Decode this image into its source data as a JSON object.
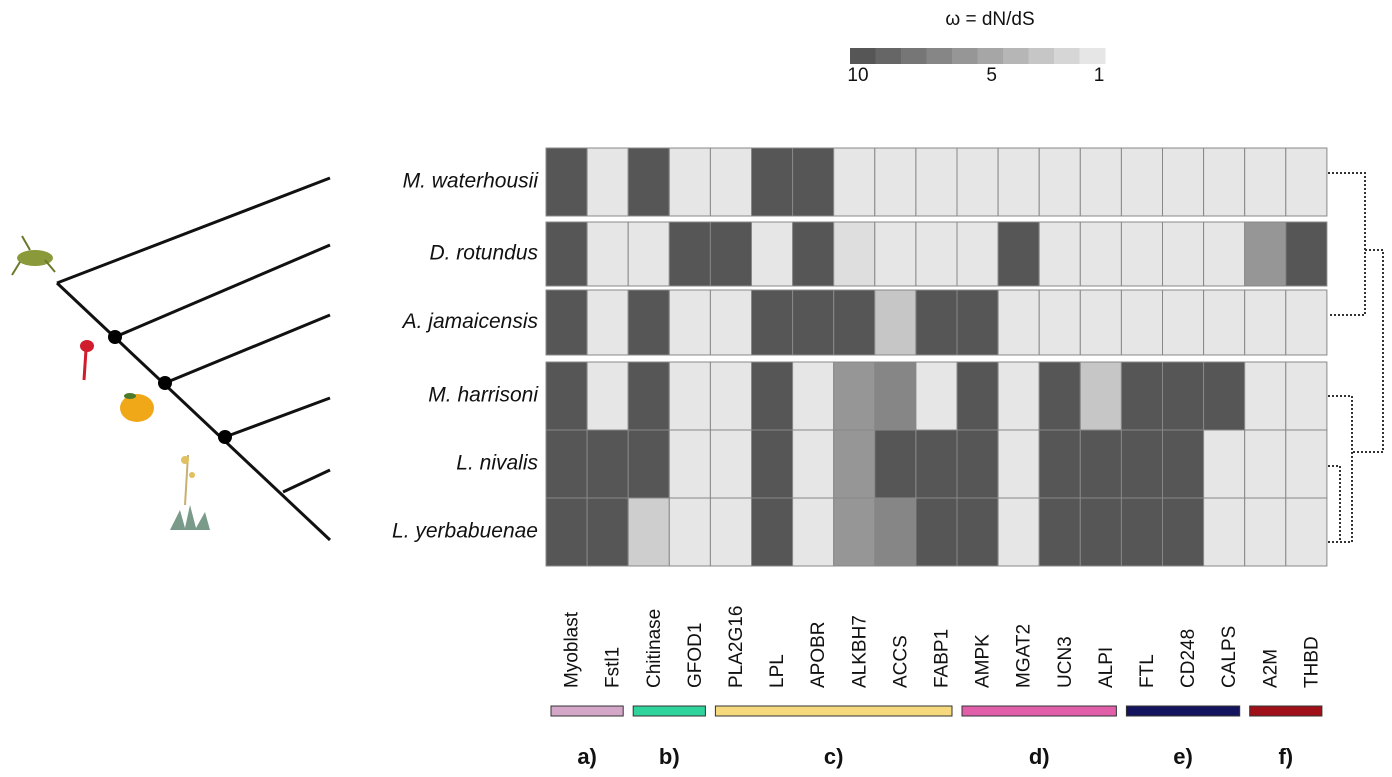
{
  "chart_data": {
    "type": "heatmap",
    "colorbar": {
      "label": "ω = dN/dS",
      "lim": [
        10,
        1
      ],
      "ticks": [
        10,
        5,
        1
      ]
    },
    "color_range": [
      "#565656",
      "#e6e6e6"
    ],
    "rows": [
      "M. waterhousii",
      "D. rotundus",
      "A. jamaicensis",
      "M. harrisoni",
      "L. nivalis",
      "L. yerbabuenae"
    ],
    "columns": [
      "Myoblast",
      "Fstl1",
      "Chitinase",
      "GFOD1",
      "PLA2G16",
      "LPL",
      "APOBR",
      "ALKBH7",
      "ACCS",
      "FABP1",
      "AMPK",
      "MGAT2",
      "UCN3",
      "ALPI",
      "FTL",
      "CD248",
      "CALPS",
      "A2M",
      "THBD"
    ],
    "values": [
      [
        10,
        1,
        10,
        1,
        1,
        10,
        10,
        1,
        1,
        1,
        1,
        1,
        1,
        1,
        1,
        1,
        1,
        1,
        1
      ],
      [
        10,
        1,
        1,
        10,
        10,
        1,
        10,
        1.5,
        1,
        1,
        1,
        10,
        1,
        1,
        1,
        1,
        1,
        6,
        10
      ],
      [
        10,
        1,
        10,
        1,
        1,
        10,
        10,
        10,
        3,
        10,
        10,
        1,
        1,
        1,
        1,
        1,
        1,
        1,
        1
      ],
      [
        10,
        1,
        10,
        1,
        1,
        10,
        1,
        6,
        7,
        1,
        10,
        1,
        10,
        3,
        10,
        10,
        10,
        1,
        1
      ],
      [
        10,
        10,
        10,
        1,
        1,
        10,
        1,
        6,
        10,
        10,
        10,
        1,
        10,
        10,
        10,
        10,
        1,
        1,
        1
      ],
      [
        10,
        10,
        2.5,
        1,
        1,
        10,
        1,
        6,
        7,
        10,
        10,
        1,
        10,
        10,
        10,
        10,
        1,
        1,
        1
      ]
    ],
    "groups": [
      {
        "label": "a)",
        "color": "#d4a6c8",
        "from": 0,
        "to": 1
      },
      {
        "label": "b)",
        "color": "#2fd39c",
        "from": 2,
        "to": 3
      },
      {
        "label": "c)",
        "color": "#f6d97c",
        "from": 4,
        "to": 9
      },
      {
        "label": "d)",
        "color": "#e05fa8",
        "from": 10,
        "to": 13
      },
      {
        "label": "e)",
        "color": "#14145e",
        "from": 14,
        "to": 16
      },
      {
        "label": "f)",
        "color": "#a01018",
        "from": 17,
        "to": 18
      }
    ]
  }
}
